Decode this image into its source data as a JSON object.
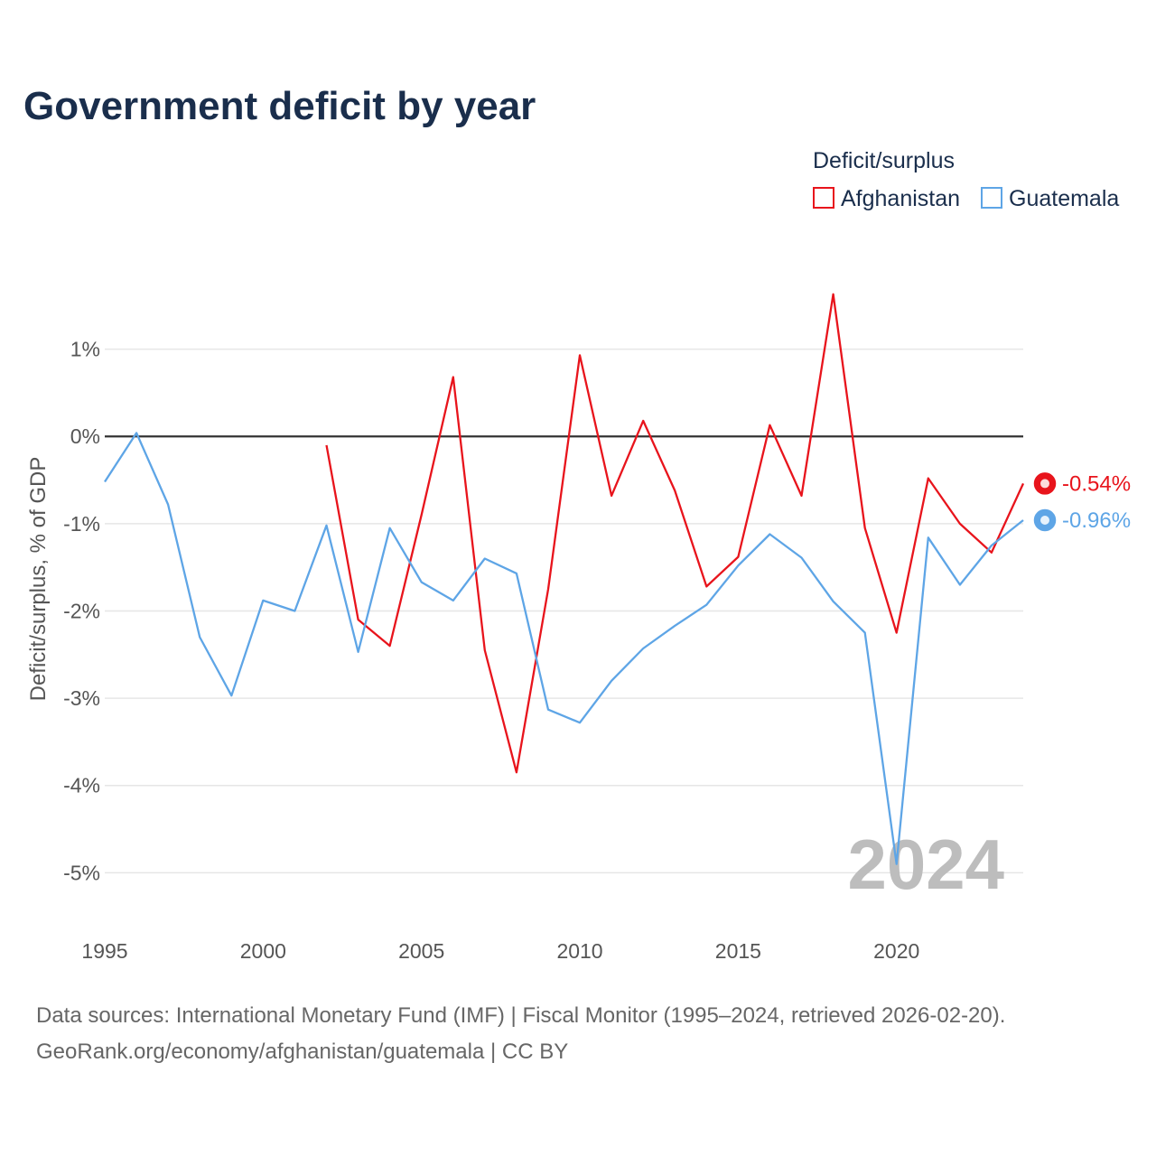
{
  "chart_data": {
    "type": "line",
    "title": "Government deficit by year",
    "xlabel": "",
    "ylabel": "Deficit/surplus, % of GDP",
    "xlim": [
      1995,
      2024
    ],
    "ylim": [
      -5.4,
      2.0
    ],
    "x_ticks": [
      1995,
      2000,
      2005,
      2010,
      2015,
      2020
    ],
    "x_tick_labels": [
      "1995",
      "2000",
      "2005",
      "2010",
      "2015",
      "2020"
    ],
    "y_ticks": [
      1,
      0,
      -1,
      -2,
      -3,
      -4,
      -5
    ],
    "y_tick_labels": [
      "1%",
      "0%",
      "-1%",
      "-2%",
      "-3%",
      "-4%",
      "-5%"
    ],
    "grid": true,
    "legend_title": "Deficit/surplus",
    "legend_position": "top-right",
    "watermark": "2024",
    "series": [
      {
        "name": "Afghanistan",
        "color": "#e8141c",
        "end_label": "-0.54%",
        "x": [
          2002,
          2003,
          2004,
          2005,
          2006,
          2007,
          2008,
          2009,
          2010,
          2011,
          2012,
          2013,
          2014,
          2015,
          2016,
          2017,
          2018,
          2019,
          2020,
          2021,
          2022,
          2023,
          2024
        ],
        "values": [
          -0.1,
          -2.1,
          -2.4,
          -0.9,
          0.68,
          -2.45,
          -3.85,
          -1.75,
          0.93,
          -0.68,
          0.18,
          -0.62,
          -1.72,
          -1.38,
          0.13,
          -0.68,
          1.63,
          -1.05,
          -2.25,
          -0.48,
          -1.0,
          -1.33,
          -0.54
        ]
      },
      {
        "name": "Guatemala",
        "color": "#5ea5e6",
        "end_label": "-0.96%",
        "x": [
          1995,
          1996,
          1997,
          1998,
          1999,
          2000,
          2001,
          2002,
          2003,
          2004,
          2005,
          2006,
          2007,
          2008,
          2009,
          2010,
          2011,
          2012,
          2013,
          2014,
          2015,
          2016,
          2017,
          2018,
          2019,
          2020,
          2021,
          2022,
          2023,
          2024
        ],
        "values": [
          -0.52,
          0.04,
          -0.78,
          -2.3,
          -2.97,
          -1.88,
          -2.0,
          -1.02,
          -2.47,
          -1.05,
          -1.67,
          -1.88,
          -1.4,
          -1.57,
          -3.13,
          -3.28,
          -2.8,
          -2.43,
          -2.17,
          -1.93,
          -1.48,
          -1.12,
          -1.39,
          -1.89,
          -2.25,
          -4.9,
          -1.16,
          -1.7,
          -1.25,
          -0.96
        ]
      }
    ]
  },
  "footer": {
    "line1": "Data sources: International Monetary Fund (IMF) | Fiscal Monitor (1995–2024, retrieved 2026-02-20).",
    "line2": "GeoRank.org/economy/afghanistan/guatemala | CC BY"
  }
}
